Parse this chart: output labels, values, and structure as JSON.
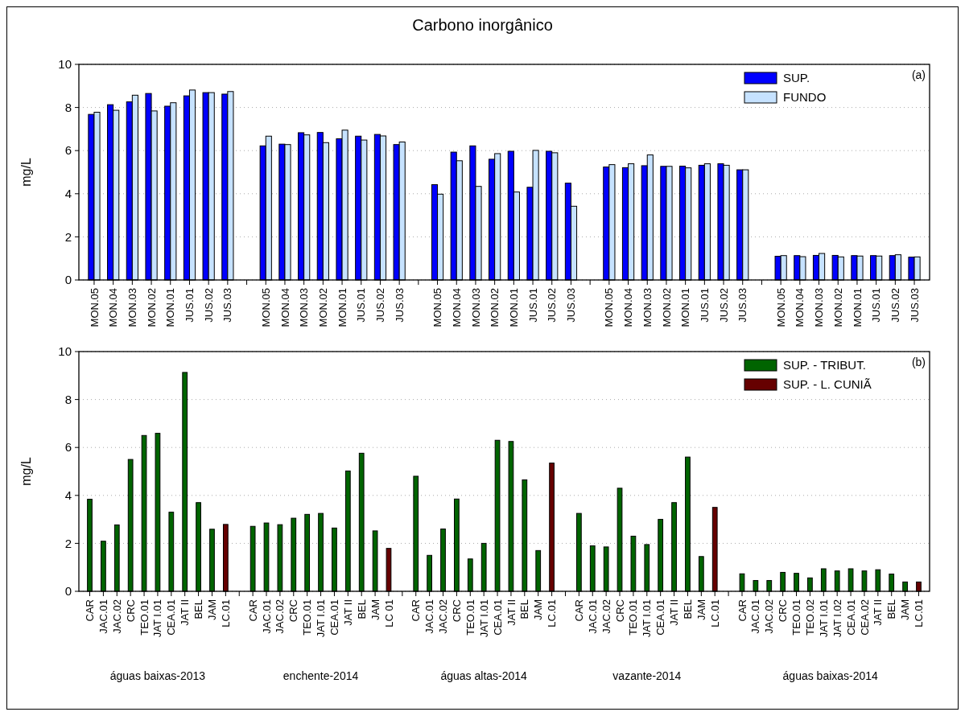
{
  "chart_data": [
    {
      "type": "bar",
      "title": "Carbono inorgânico",
      "ylabel": "mg/L",
      "annotations": [
        "(a)"
      ],
      "categories": [
        "MON.05",
        "MON.04",
        "MON.03",
        "MON.02",
        "MON.01",
        "JUS.01",
        "JUS.02",
        "JUS.03",
        null,
        "MON.05",
        "MON.04",
        "MON.03",
        "MON.02",
        "MON.01",
        "JUS.01",
        "JUS.02",
        "JUS.03",
        null,
        "MON.05",
        "MON.04",
        "MON.03",
        "MON.02",
        "MON.01",
        "JUS.01",
        "JUS.02",
        "JUS.03",
        null,
        "MON.05",
        "MON.04",
        "MON.03",
        "MON.02",
        "MON.01",
        "JUS.01",
        "JUS.02",
        "JUS.03",
        null,
        "MON.05",
        "MON.04",
        "MON.03",
        "MON.02",
        "MON.01",
        "JUS.01",
        "JUS.02",
        "JUS.03"
      ],
      "series": [
        {
          "name": "SUP.",
          "color": "#0000ff",
          "values": [
            7.68,
            8.13,
            8.26,
            8.65,
            8.06,
            8.54,
            8.69,
            8.62,
            null,
            6.22,
            6.3,
            6.83,
            6.84,
            6.55,
            6.67,
            6.75,
            6.28,
            null,
            4.42,
            5.93,
            6.22,
            5.6,
            5.97,
            4.3,
            5.97,
            4.49,
            null,
            5.24,
            5.21,
            5.3,
            5.27,
            5.28,
            5.32,
            5.39,
            5.11,
            null,
            1.1,
            1.13,
            1.14,
            1.14,
            1.13,
            1.13,
            1.13,
            1.06
          ]
        },
        {
          "name": "FUNDO",
          "color": "#c6e2ff",
          "values": [
            7.78,
            7.87,
            8.57,
            7.84,
            8.22,
            8.81,
            8.69,
            8.74,
            null,
            6.67,
            6.28,
            6.73,
            6.37,
            6.95,
            6.49,
            6.68,
            6.4,
            null,
            3.98,
            5.53,
            4.34,
            5.86,
            4.08,
            6.01,
            5.9,
            3.42,
            null,
            5.35,
            5.39,
            5.8,
            5.27,
            5.2,
            5.39,
            5.32,
            5.11,
            null,
            1.13,
            1.08,
            1.23,
            1.07,
            1.11,
            1.11,
            1.17,
            1.07
          ]
        }
      ],
      "ylim": [
        0,
        10
      ],
      "yticks": [
        0,
        2,
        4,
        6,
        8,
        10
      ],
      "grid": "y",
      "legend": "top right"
    },
    {
      "type": "bar",
      "ylabel": "mg/L",
      "annotations": [
        "(b)",
        "águas baixas-2013",
        "enchente-2014",
        "águas altas-2014",
        "vazante-2014",
        "águas baixas-2014"
      ],
      "categories": [
        "CAR",
        "JAC.01",
        "JAC.02",
        "CRC",
        "TEO.01",
        "JAT I.01",
        "CEA.01",
        "JAT II",
        "BEL",
        "JAM",
        "LC.01",
        null,
        "CAR",
        "JAC.01",
        "JAC.02",
        "CRC",
        "TEO.01",
        "JAT I.01",
        "CEA.01",
        "JAT II",
        "BEL",
        "JAM",
        "LC 01",
        null,
        "CAR",
        "JAC.01",
        "JAC.02",
        "CRC",
        "TEO.01",
        "JAT I.01",
        "CEA.01",
        "JAT II",
        "BEL",
        "JAM",
        "LC.01",
        null,
        "CAR",
        "JAC.01",
        "JAC.02",
        "CRC",
        "TEO.01",
        "JAT I.01",
        "CEA.01",
        "JAT II",
        "BEL",
        "JAM",
        "LC.01",
        null,
        "CAR",
        "JAC.01",
        "JAC.02",
        "CRC",
        "TEO.01",
        "TEO.02",
        "JAT I.01",
        "JAT I.02",
        "CEA.01",
        "CEA.02",
        "JAT II",
        "BEL",
        "JAM",
        "LC.01"
      ],
      "series": [
        {
          "name": "SUP. - TRIBUT.",
          "color": "#006400",
          "values": [
            3.84,
            2.09,
            2.77,
            5.5,
            6.5,
            6.59,
            3.3,
            9.13,
            3.7,
            2.59,
            null,
            null,
            2.71,
            2.85,
            2.78,
            3.05,
            3.21,
            3.25,
            2.64,
            5.02,
            5.76,
            2.52,
            null,
            null,
            4.8,
            1.5,
            2.6,
            3.85,
            1.35,
            2.0,
            6.3,
            6.25,
            4.65,
            1.7,
            null,
            null,
            3.25,
            1.9,
            1.85,
            4.3,
            2.3,
            1.95,
            3.0,
            3.7,
            5.6,
            1.45,
            null,
            null,
            0.73,
            0.45,
            0.45,
            0.79,
            0.75,
            0.56,
            0.94,
            0.85,
            0.94,
            0.85,
            0.9,
            0.72,
            0.39,
            null
          ]
        },
        {
          "name": "SUP. - L. CUNIÃ",
          "color": "#660000",
          "values": [
            null,
            null,
            null,
            null,
            null,
            null,
            null,
            null,
            null,
            null,
            2.79,
            null,
            null,
            null,
            null,
            null,
            null,
            null,
            null,
            null,
            null,
            null,
            1.79,
            null,
            null,
            null,
            null,
            null,
            null,
            null,
            null,
            null,
            null,
            null,
            5.35,
            null,
            null,
            null,
            null,
            null,
            null,
            null,
            null,
            null,
            null,
            null,
            3.5,
            null,
            null,
            null,
            null,
            null,
            null,
            null,
            null,
            null,
            null,
            null,
            null,
            null,
            null,
            0.39
          ]
        }
      ],
      "ylim": [
        0,
        10
      ],
      "yticks": [
        0,
        2,
        4,
        6,
        8,
        10
      ],
      "grid": "y",
      "legend": "top right"
    }
  ]
}
